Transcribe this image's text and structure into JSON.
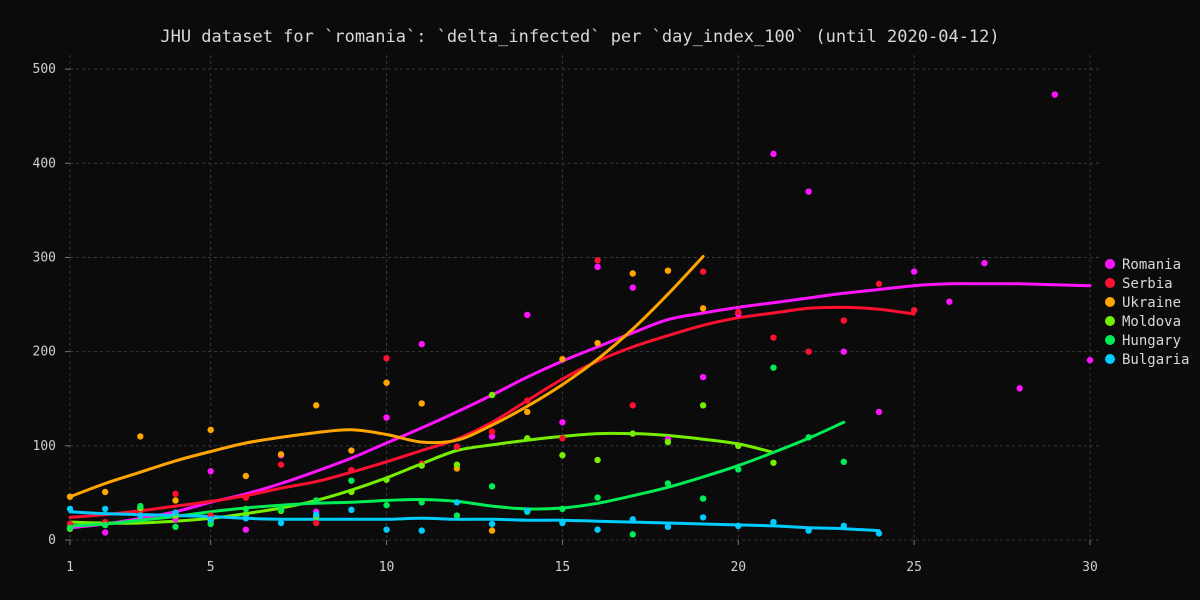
{
  "chart_data": {
    "type": "scatter",
    "title": "JHU dataset for `romania`: `delta_infected` per `day_index_100` (until 2020-04-12)",
    "xlabel": "",
    "ylabel": "",
    "xlim": [
      1,
      30
    ],
    "ylim": [
      0,
      515
    ],
    "xticks": [
      1,
      5,
      10,
      15,
      20,
      25,
      30
    ],
    "yticks": [
      0,
      100,
      200,
      300,
      400,
      500
    ],
    "grid": true,
    "legend_position": "right",
    "series": [
      {
        "name": "Romania",
        "color": "#ff14ff",
        "points": [
          [
            1,
            12
          ],
          [
            2,
            8
          ],
          [
            3,
            27
          ],
          [
            4,
            22
          ],
          [
            5,
            73
          ],
          [
            6,
            11
          ],
          [
            7,
            90
          ],
          [
            8,
            30
          ],
          [
            9,
            74
          ],
          [
            10,
            130
          ],
          [
            11,
            208
          ],
          [
            12,
            99
          ],
          [
            13,
            110
          ],
          [
            14,
            239
          ],
          [
            15,
            125
          ],
          [
            16,
            290
          ],
          [
            17,
            268
          ],
          [
            18,
            107
          ],
          [
            19,
            173
          ],
          [
            20,
            240
          ],
          [
            21,
            410
          ],
          [
            22,
            370
          ],
          [
            23,
            200
          ],
          [
            24,
            136
          ],
          [
            25,
            285
          ],
          [
            26,
            253
          ],
          [
            27,
            294
          ],
          [
            28,
            161
          ],
          [
            29,
            473
          ],
          [
            30,
            191
          ]
        ],
        "trend": [
          [
            1,
            13
          ],
          [
            2,
            17
          ],
          [
            3,
            23
          ],
          [
            4,
            30
          ],
          [
            5,
            40
          ],
          [
            6,
            49
          ],
          [
            7,
            60
          ],
          [
            8,
            73
          ],
          [
            9,
            87
          ],
          [
            10,
            103
          ],
          [
            11,
            119
          ],
          [
            12,
            136
          ],
          [
            13,
            154
          ],
          [
            14,
            173
          ],
          [
            15,
            190
          ],
          [
            16,
            205
          ],
          [
            17,
            220
          ],
          [
            18,
            234
          ],
          [
            19,
            241
          ],
          [
            20,
            247
          ],
          [
            21,
            252
          ],
          [
            22,
            257
          ],
          [
            23,
            262
          ],
          [
            24,
            266
          ],
          [
            25,
            270
          ],
          [
            26,
            272
          ],
          [
            27,
            272
          ],
          [
            28,
            272
          ],
          [
            29,
            271
          ],
          [
            30,
            270
          ]
        ]
      },
      {
        "name": "Serbia",
        "color": "#ff1030",
        "points": [
          [
            1,
            17
          ],
          [
            2,
            19
          ],
          [
            3,
            28
          ],
          [
            4,
            49
          ],
          [
            5,
            26
          ],
          [
            6,
            45
          ],
          [
            7,
            80
          ],
          [
            8,
            18
          ],
          [
            9,
            74
          ],
          [
            10,
            193
          ],
          [
            11,
            81
          ],
          [
            12,
            99
          ],
          [
            13,
            115
          ],
          [
            14,
            148
          ],
          [
            15,
            108
          ],
          [
            16,
            297
          ],
          [
            17,
            143
          ],
          [
            18,
            286
          ],
          [
            19,
            285
          ],
          [
            20,
            242
          ],
          [
            21,
            215
          ],
          [
            22,
            200
          ],
          [
            23,
            233
          ],
          [
            24,
            272
          ],
          [
            25,
            244
          ]
        ],
        "trend": [
          [
            1,
            24
          ],
          [
            2,
            27
          ],
          [
            3,
            31
          ],
          [
            4,
            36
          ],
          [
            5,
            41
          ],
          [
            6,
            47
          ],
          [
            7,
            55
          ],
          [
            8,
            62
          ],
          [
            9,
            72
          ],
          [
            10,
            83
          ],
          [
            11,
            95
          ],
          [
            12,
            107
          ],
          [
            13,
            125
          ],
          [
            14,
            148
          ],
          [
            15,
            171
          ],
          [
            16,
            190
          ],
          [
            17,
            205
          ],
          [
            18,
            217
          ],
          [
            19,
            228
          ],
          [
            20,
            236
          ],
          [
            21,
            241
          ],
          [
            22,
            246
          ],
          [
            23,
            247
          ],
          [
            24,
            245
          ],
          [
            25,
            240
          ]
        ]
      },
      {
        "name": "Ukraine",
        "color": "#ffa500",
        "points": [
          [
            1,
            46
          ],
          [
            2,
            51
          ],
          [
            3,
            110
          ],
          [
            4,
            42
          ],
          [
            5,
            117
          ],
          [
            6,
            68
          ],
          [
            7,
            91
          ],
          [
            8,
            143
          ],
          [
            9,
            95
          ],
          [
            10,
            167
          ],
          [
            11,
            145
          ],
          [
            12,
            76
          ],
          [
            13,
            10
          ],
          [
            14,
            136
          ],
          [
            15,
            192
          ],
          [
            16,
            209
          ],
          [
            17,
            283
          ],
          [
            18,
            286
          ],
          [
            19,
            246
          ]
        ],
        "trend": [
          [
            1,
            46
          ],
          [
            2,
            60
          ],
          [
            3,
            72
          ],
          [
            4,
            84
          ],
          [
            5,
            94
          ],
          [
            6,
            103
          ],
          [
            7,
            109
          ],
          [
            8,
            114
          ],
          [
            9,
            117
          ],
          [
            10,
            112
          ],
          [
            11,
            104
          ],
          [
            12,
            106
          ],
          [
            13,
            122
          ],
          [
            14,
            142
          ],
          [
            15,
            165
          ],
          [
            16,
            192
          ],
          [
            17,
            224
          ],
          [
            18,
            261
          ],
          [
            19,
            301
          ]
        ]
      },
      {
        "name": "Moldova",
        "color": "#76ee00",
        "points": [
          [
            1,
            12
          ],
          [
            2,
            16
          ],
          [
            3,
            34
          ],
          [
            4,
            26
          ],
          [
            5,
            21
          ],
          [
            6,
            27
          ],
          [
            7,
            31
          ],
          [
            8,
            25
          ],
          [
            9,
            51
          ],
          [
            10,
            64
          ],
          [
            11,
            79
          ],
          [
            12,
            80
          ],
          [
            13,
            154
          ],
          [
            14,
            108
          ],
          [
            15,
            90
          ],
          [
            16,
            85
          ],
          [
            17,
            113
          ],
          [
            18,
            104
          ],
          [
            19,
            143
          ],
          [
            20,
            100
          ],
          [
            21,
            82
          ]
        ],
        "trend": [
          [
            1,
            19
          ],
          [
            2,
            18
          ],
          [
            3,
            18
          ],
          [
            4,
            20
          ],
          [
            5,
            23
          ],
          [
            6,
            28
          ],
          [
            7,
            34
          ],
          [
            8,
            42
          ],
          [
            9,
            53
          ],
          [
            10,
            66
          ],
          [
            11,
            81
          ],
          [
            12,
            95
          ],
          [
            13,
            101
          ],
          [
            14,
            106
          ],
          [
            15,
            110
          ],
          [
            16,
            113
          ],
          [
            17,
            113
          ],
          [
            18,
            111
          ],
          [
            19,
            107
          ],
          [
            20,
            102
          ],
          [
            21,
            93
          ]
        ]
      },
      {
        "name": "Hungary",
        "color": "#00ee55",
        "points": [
          [
            1,
            13
          ],
          [
            2,
            16
          ],
          [
            3,
            36
          ],
          [
            4,
            14
          ],
          [
            5,
            17
          ],
          [
            6,
            33
          ],
          [
            7,
            32
          ],
          [
            8,
            42
          ],
          [
            9,
            63
          ],
          [
            10,
            37
          ],
          [
            11,
            40
          ],
          [
            12,
            26
          ],
          [
            13,
            57
          ],
          [
            14,
            30
          ],
          [
            15,
            33
          ],
          [
            16,
            45
          ],
          [
            17,
            6
          ],
          [
            18,
            60
          ],
          [
            19,
            44
          ],
          [
            20,
            75
          ],
          [
            21,
            183
          ],
          [
            22,
            109
          ],
          [
            23,
            83
          ]
        ],
        "trend": [
          [
            1,
            15
          ],
          [
            2,
            17
          ],
          [
            3,
            21
          ],
          [
            4,
            25
          ],
          [
            5,
            30
          ],
          [
            6,
            34
          ],
          [
            7,
            37
          ],
          [
            8,
            39
          ],
          [
            9,
            40
          ],
          [
            10,
            42
          ],
          [
            11,
            43
          ],
          [
            12,
            41
          ],
          [
            13,
            36
          ],
          [
            14,
            33
          ],
          [
            15,
            34
          ],
          [
            16,
            39
          ],
          [
            17,
            47
          ],
          [
            18,
            56
          ],
          [
            19,
            67
          ],
          [
            20,
            79
          ],
          [
            21,
            93
          ],
          [
            22,
            108
          ],
          [
            23,
            125
          ]
        ]
      },
      {
        "name": "Bulgaria",
        "color": "#00ccff",
        "points": [
          [
            1,
            33
          ],
          [
            2,
            33
          ],
          [
            3,
            26
          ],
          [
            4,
            29
          ],
          [
            5,
            22
          ],
          [
            6,
            23
          ],
          [
            7,
            18
          ],
          [
            8,
            27
          ],
          [
            9,
            32
          ],
          [
            10,
            11
          ],
          [
            11,
            10
          ],
          [
            12,
            40
          ],
          [
            13,
            17
          ],
          [
            14,
            31
          ],
          [
            15,
            18
          ],
          [
            16,
            11
          ],
          [
            17,
            22
          ],
          [
            18,
            14
          ],
          [
            19,
            24
          ],
          [
            20,
            15
          ],
          [
            21,
            19
          ],
          [
            22,
            10
          ],
          [
            23,
            15
          ],
          [
            24,
            7
          ]
        ],
        "trend": [
          [
            1,
            30
          ],
          [
            2,
            28
          ],
          [
            3,
            27
          ],
          [
            4,
            26
          ],
          [
            5,
            25
          ],
          [
            6,
            23
          ],
          [
            7,
            22
          ],
          [
            8,
            22
          ],
          [
            9,
            22
          ],
          [
            10,
            22
          ],
          [
            11,
            23
          ],
          [
            12,
            22
          ],
          [
            13,
            22
          ],
          [
            14,
            21
          ],
          [
            15,
            21
          ],
          [
            16,
            20
          ],
          [
            17,
            19
          ],
          [
            18,
            18
          ],
          [
            19,
            17
          ],
          [
            20,
            16
          ],
          [
            21,
            15
          ],
          [
            22,
            13
          ],
          [
            23,
            12
          ],
          [
            24,
            10
          ]
        ]
      }
    ]
  }
}
